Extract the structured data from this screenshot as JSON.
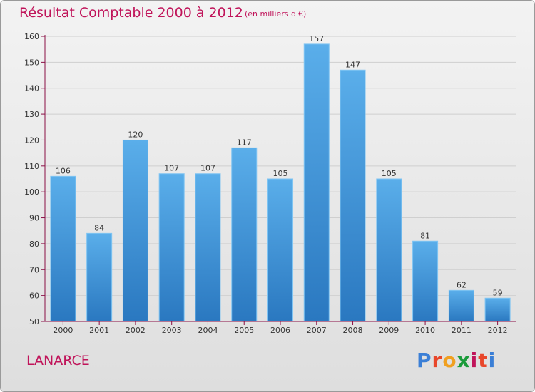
{
  "header": {
    "title": "Résultat Comptable 2000 à 2012",
    "subtitle": "(en milliers d'€)"
  },
  "footer": {
    "commune": "LANARCE",
    "logo_letters": [
      "P",
      "r",
      "o",
      "x",
      "i",
      "t",
      "i"
    ],
    "logo_colors": [
      "#3b7fd6",
      "#e8472b",
      "#f0a020",
      "#1a9b3a",
      "#c0145a",
      "#e8472b",
      "#3b7fd6"
    ]
  },
  "colors": {
    "bar_light": "#5aaeea",
    "bar_dark": "#2a78c0",
    "axis": "#8a0f45",
    "grid": "#cfcfcf"
  },
  "chart_data": {
    "type": "bar",
    "title": "Résultat Comptable 2000 à 2012",
    "subtitle": "(en milliers d'€)",
    "categories": [
      "2000",
      "2001",
      "2002",
      "2003",
      "2004",
      "2005",
      "2006",
      "2007",
      "2008",
      "2009",
      "2010",
      "2011",
      "2012"
    ],
    "values": [
      106,
      84,
      120,
      107,
      107,
      117,
      105,
      157,
      147,
      105,
      81,
      62,
      59
    ],
    "ylim": [
      50,
      160
    ],
    "yticks": [
      50,
      60,
      70,
      80,
      90,
      100,
      110,
      120,
      130,
      140,
      150,
      160
    ],
    "grid": true,
    "xlabel": "",
    "ylabel": ""
  }
}
